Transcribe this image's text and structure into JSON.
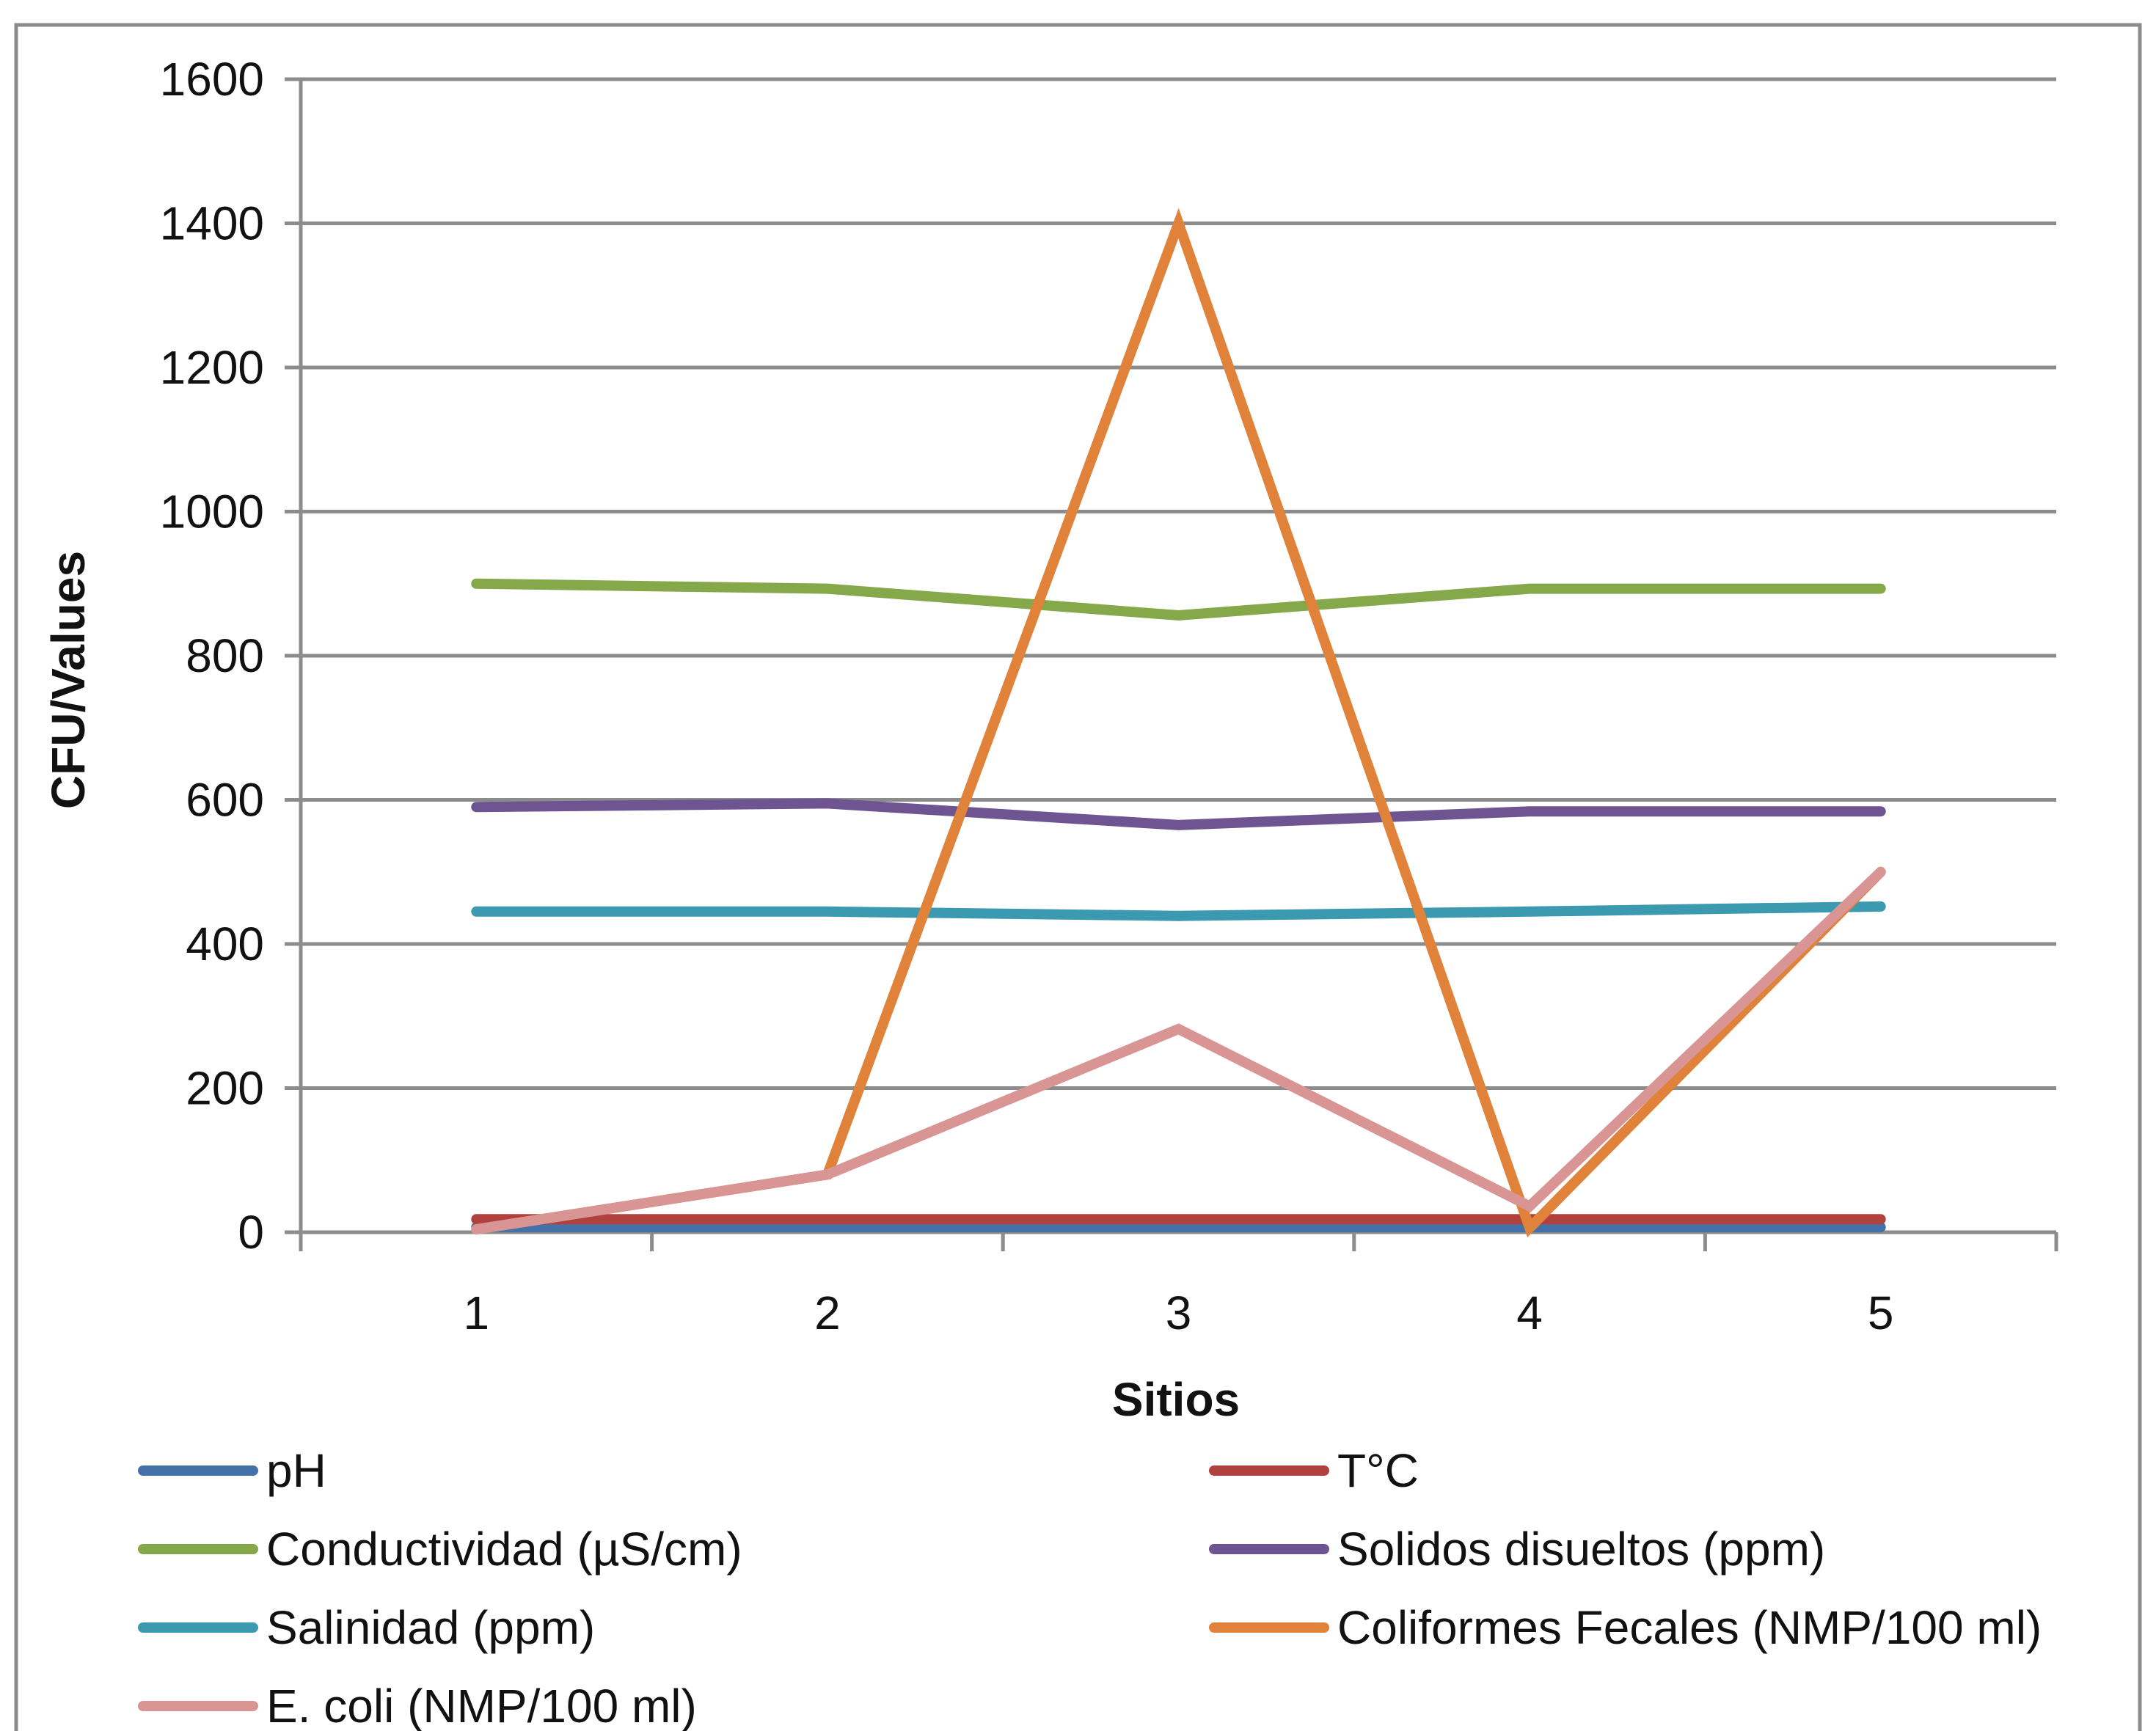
{
  "chart_data": {
    "type": "line",
    "title": "",
    "xlabel": "Sitios",
    "ylabel": "CFU/Values",
    "categories": [
      "1",
      "2",
      "3",
      "4",
      "5"
    ],
    "ylim": [
      0,
      1600
    ],
    "yticks": [
      "0",
      "200",
      "400",
      "600",
      "800",
      "1000",
      "1200",
      "1400",
      "1600"
    ],
    "grid": true,
    "legend_position": "bottom",
    "series": [
      {
        "name": "pH",
        "color": "#4472A8",
        "values": [
          7,
          7,
          7,
          7,
          7
        ]
      },
      {
        "name": "T°C",
        "color": "#B0413E",
        "values": [
          18,
          18,
          18,
          18,
          18
        ]
      },
      {
        "name": "Conductividad (µS/cm)",
        "color": "#84A84A",
        "values": [
          900,
          893,
          856,
          893,
          893
        ]
      },
      {
        "name": "Solidos disueltos (ppm)",
        "color": "#6E5490",
        "values": [
          590,
          595,
          565,
          584,
          584
        ]
      },
      {
        "name": "Salinidad (ppm)",
        "color": "#3C9AB0",
        "values": [
          445,
          445,
          439,
          445,
          452
        ]
      },
      {
        "name": "Coliformes Fecales (NMP/100 ml)",
        "color": "#E0823A",
        "values": [
          4,
          80,
          1400,
          6,
          500
        ]
      },
      {
        "name": "E. coli (NMP/100 ml)",
        "color": "#D99594",
        "values": [
          4,
          80,
          282,
          36,
          500
        ]
      }
    ]
  }
}
